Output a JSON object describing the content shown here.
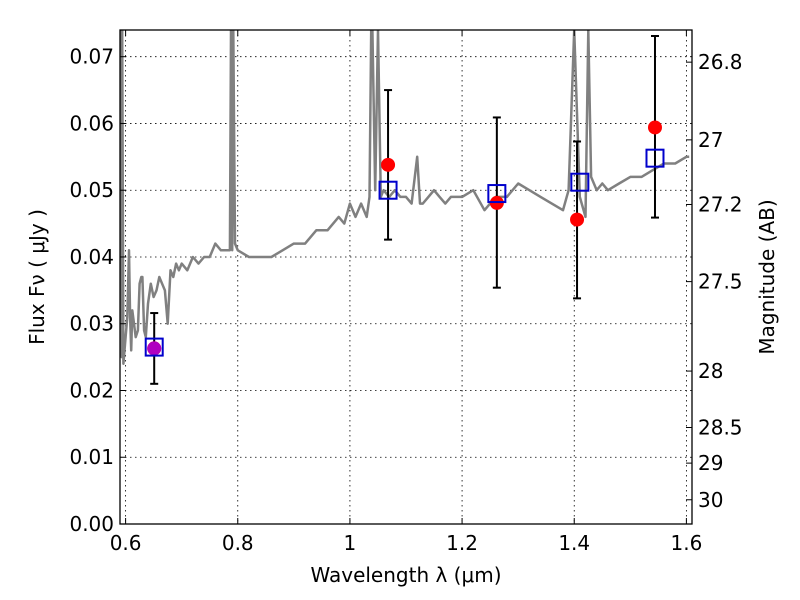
{
  "chart_data": {
    "type": "scatter",
    "title": "",
    "xlabel": "Wavelength  λ (μm)",
    "ylabel": "Flux  Fν  ( μJy )",
    "ylabel_right": "Magnitude (AB)",
    "xlim": [
      0.59,
      1.61
    ],
    "ylim": [
      0,
      0.074
    ],
    "grid": true,
    "x_ticks": [
      {
        "value": 0.6,
        "label": "0.6"
      },
      {
        "value": 0.8,
        "label": "0.8"
      },
      {
        "value": 1.0,
        "label": "1"
      },
      {
        "value": 1.2,
        "label": "1.2"
      },
      {
        "value": 1.4,
        "label": "1.4"
      },
      {
        "value": 1.6,
        "label": "1.6"
      }
    ],
    "y_ticks": [
      {
        "value": 0.0,
        "label": "0.00"
      },
      {
        "value": 0.01,
        "label": "0.01"
      },
      {
        "value": 0.02,
        "label": "0.02"
      },
      {
        "value": 0.03,
        "label": "0.03"
      },
      {
        "value": 0.04,
        "label": "0.04"
      },
      {
        "value": 0.05,
        "label": "0.05"
      },
      {
        "value": 0.06,
        "label": "0.06"
      },
      {
        "value": 0.07,
        "label": "0.07"
      }
    ],
    "mag_ticks": [
      {
        "value": 26.8,
        "label": "26.8"
      },
      {
        "value": 27,
        "label": "27"
      },
      {
        "value": 27.2,
        "label": "27.2"
      },
      {
        "value": 27.5,
        "label": "27.5"
      },
      {
        "value": 28,
        "label": "28"
      },
      {
        "value": 28.5,
        "label": "28.5"
      },
      {
        "value": 29,
        "label": "29"
      },
      {
        "value": 30,
        "label": "30"
      }
    ],
    "model_spectrum": {
      "color": "#808080",
      "x": [
        0.59,
        0.592,
        0.593,
        0.594,
        0.596,
        0.598,
        0.6,
        0.603,
        0.606,
        0.608,
        0.61,
        0.612,
        0.615,
        0.618,
        0.622,
        0.625,
        0.628,
        0.63,
        0.633,
        0.636,
        0.64,
        0.645,
        0.65,
        0.655,
        0.66,
        0.665,
        0.67,
        0.675,
        0.68,
        0.685,
        0.69,
        0.695,
        0.7,
        0.71,
        0.72,
        0.73,
        0.74,
        0.75,
        0.76,
        0.77,
        0.78,
        0.786,
        0.788,
        0.79,
        0.792,
        0.795,
        0.8,
        0.82,
        0.84,
        0.86,
        0.88,
        0.9,
        0.92,
        0.94,
        0.96,
        0.98,
        0.99,
        1.0,
        1.01,
        1.02,
        1.03,
        1.035,
        1.038,
        1.04,
        1.045,
        1.05,
        1.055,
        1.06,
        1.07,
        1.08,
        1.09,
        1.1,
        1.11,
        1.12,
        1.125,
        1.13,
        1.14,
        1.15,
        1.16,
        1.17,
        1.18,
        1.2,
        1.22,
        1.24,
        1.26,
        1.28,
        1.3,
        1.32,
        1.34,
        1.36,
        1.38,
        1.39,
        1.4,
        1.41,
        1.42,
        1.425,
        1.43,
        1.44,
        1.45,
        1.46,
        1.48,
        1.5,
        1.52,
        1.54,
        1.56,
        1.58,
        1.6,
        1.605
      ],
      "y": [
        0.074,
        0.035,
        0.025,
        0.074,
        0.024,
        0.026,
        0.028,
        0.031,
        0.041,
        0.031,
        0.026,
        0.032,
        0.03,
        0.028,
        0.029,
        0.036,
        0.037,
        0.037,
        0.029,
        0.028,
        0.033,
        0.036,
        0.034,
        0.035,
        0.037,
        0.036,
        0.035,
        0.03,
        0.038,
        0.037,
        0.039,
        0.038,
        0.039,
        0.038,
        0.04,
        0.039,
        0.04,
        0.04,
        0.042,
        0.041,
        0.041,
        0.041,
        0.074,
        0.041,
        0.074,
        0.042,
        0.041,
        0.04,
        0.04,
        0.04,
        0.041,
        0.042,
        0.042,
        0.044,
        0.044,
        0.046,
        0.045,
        0.048,
        0.046,
        0.048,
        0.046,
        0.049,
        0.074,
        0.074,
        0.05,
        0.074,
        0.049,
        0.05,
        0.049,
        0.05,
        0.049,
        0.049,
        0.048,
        0.055,
        0.048,
        0.048,
        0.049,
        0.05,
        0.049,
        0.048,
        0.049,
        0.049,
        0.05,
        0.047,
        0.049,
        0.049,
        0.051,
        0.05,
        0.049,
        0.048,
        0.047,
        0.05,
        0.074,
        0.049,
        0.046,
        0.074,
        0.052,
        0.05,
        0.051,
        0.05,
        0.051,
        0.052,
        0.052,
        0.053,
        0.054,
        0.054,
        0.055,
        0.055
      ]
    },
    "series": [
      {
        "marker": "circle",
        "color": "#ff0000",
        "x": [
          0.651,
          1.068,
          1.262,
          1.405,
          1.544
        ],
        "y": [
          0.0263,
          0.0538,
          0.0481,
          0.0456,
          0.0594
        ],
        "yerr_low": [
          0.021,
          0.0426,
          0.0354,
          0.0338,
          0.0459
        ],
        "yerr_high": [
          0.0316,
          0.065,
          0.0609,
          0.0573,
          0.0731
        ]
      },
      {
        "marker": "open-square",
        "color": "#0000cc",
        "x": [
          0.651,
          1.068,
          1.262,
          1.41,
          1.544
        ],
        "y": [
          0.0265,
          0.05,
          0.0495,
          0.0512,
          0.0548
        ]
      }
    ],
    "highlight_point": {
      "x": 0.651,
      "y": 0.0263,
      "color": "#b000c0"
    }
  }
}
